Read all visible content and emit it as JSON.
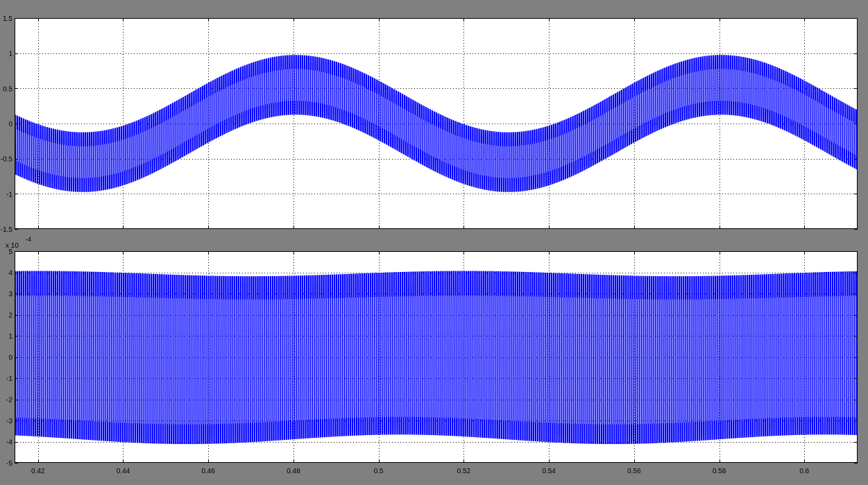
{
  "chart_data": [
    {
      "type": "line",
      "title": "",
      "xlabel": "",
      "ylabel": "",
      "xlim": [
        0.4145,
        0.6125
      ],
      "ylim": [
        -1.5,
        1.5
      ],
      "grid": true,
      "yticks": [
        -1.5,
        -1,
        -0.5,
        0,
        0.5,
        1,
        1.5
      ],
      "ytick_labels": [
        "-1.5",
        "-1",
        "-0.5",
        "0",
        "0.5",
        "1",
        "1.5"
      ],
      "xticks": [
        0.42,
        0.44,
        0.46,
        0.48,
        0.5,
        0.52,
        0.54,
        0.56,
        0.58,
        0.6
      ],
      "xtick_labels": [],
      "series": [
        {
          "color": "#0000ff",
          "description_values": {
            "fundamental_amplitude": 0.55,
            "fundamental_frequency_hz": 10,
            "fundamental_peak_at_x": 0.4805,
            "switching_frequency_hz": 2000,
            "switching_ripple_amplitude": 0.42,
            "x_start": 0.4145,
            "x_end": 0.6125
          }
        }
      ]
    },
    {
      "type": "line",
      "title": "",
      "xlabel": "",
      "ylabel": "",
      "xlim": [
        0.4145,
        0.6125
      ],
      "ylim": [
        -5,
        5
      ],
      "y_scale_label": "x 10",
      "y_scale_exponent": "-4",
      "grid": true,
      "yticks": [
        -5,
        -4,
        -3,
        -2,
        -1,
        0,
        1,
        2,
        3,
        4,
        5
      ],
      "ytick_labels": [
        "-5",
        "-4",
        "-3",
        "-2",
        "-1",
        "0",
        "1",
        "2",
        "3",
        "4",
        "5"
      ],
      "xticks": [
        0.42,
        0.44,
        0.46,
        0.48,
        0.5,
        0.52,
        0.54,
        0.56,
        0.58,
        0.6
      ],
      "xtick_labels": [
        "0.42",
        "0.44",
        "0.46",
        "0.48",
        "0.5",
        "0.52",
        "0.54",
        "0.56",
        "0.58",
        "0.6"
      ],
      "series": [
        {
          "color": "#0000ff",
          "description_values": {
            "switching_frequency_hz": 2000,
            "upper_level_max": 4.05,
            "upper_level_min": 3.8,
            "lower_level_max": -3.65,
            "lower_level_min": -4.1,
            "x_start": 0.4145,
            "x_end": 0.6125
          }
        }
      ]
    }
  ],
  "colors": {
    "background": "#808080",
    "plot_area": "#ffffff",
    "trace": "#0000ff",
    "grid": "#000000",
    "axis_text": "#000000"
  }
}
